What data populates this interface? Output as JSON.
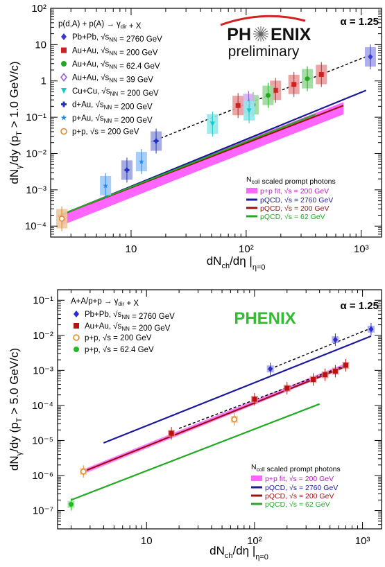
{
  "chart_data": [
    {
      "type": "scatter",
      "title": "",
      "xlabel": "dNch/dη |η=0",
      "ylabel": "dNγ/dy  (pT > 1.0 GeV/c)",
      "x_scale": "log",
      "y_scale": "log",
      "xlim": [
        2,
        1500
      ],
      "ylim": [
        5e-05,
        100
      ],
      "x_ticks": [
        "10",
        "10²",
        "10³"
      ],
      "y_ticks": [
        "10⁻⁴",
        "10⁻³",
        "10⁻²",
        "10⁻¹",
        "1",
        "10",
        "10²"
      ],
      "legend_header": "p(d,A) + p(A) → γdir + X",
      "legend_placement": "top-left",
      "alpha_label": "α = 1.25",
      "logo": [
        "PH",
        "ENIX"
      ],
      "logo_sub": "preliminary",
      "series": [
        {
          "name": "Pb+Pb, √sNN = 2760 GeV",
          "color": "#3a3ad0",
          "marker": "diamond",
          "x": [
            1200
          ],
          "y": [
            4.6
          ]
        },
        {
          "name": "Au+Au, √sNN = 200 GeV",
          "color": "#cc2222",
          "marker": "square",
          "x": [
            85,
            180,
            260,
            450
          ],
          "y": [
            0.21,
            0.55,
            0.8,
            1.5
          ]
        },
        {
          "name": "Au+Au, √sNN = 62.4 GeV",
          "color": "#22aa22",
          "marker": "circle",
          "x": [
            115,
            155,
            340
          ],
          "y": [
            0.22,
            0.4,
            1.15
          ]
        },
        {
          "name": "Au+Au, √sNN = 39 GeV",
          "color": "#9955dd",
          "marker": "diamond-open",
          "x": [
            105
          ],
          "y": [
            0.24
          ]
        },
        {
          "name": "Cu+Cu, √sNN = 200 GeV",
          "color": "#11cccc",
          "marker": "triangle-down",
          "x": [
            51,
            106
          ],
          "y": [
            0.065,
            0.15
          ]
        },
        {
          "name": "d+Au, √sNN = 200 GeV",
          "color": "#2233bb",
          "marker": "cross",
          "x": [
            9.2,
            16.5
          ],
          "y": [
            0.0035,
            0.022
          ]
        },
        {
          "name": "p+Au, √sNN = 200 GeV",
          "color": "#2288ee",
          "marker": "star",
          "x": [
            6,
            12.3
          ],
          "y": [
            0.0013,
            0.006
          ]
        },
        {
          "name": "p+p, √s = 200 GeV",
          "color": "#dd8822",
          "marker": "circle-open",
          "x": [
            2.5
          ],
          "y": [
            0.00016
          ]
        }
      ],
      "fit": {
        "x": [
          15,
          1200
        ],
        "y": [
          0.021,
          5.2
        ]
      },
      "band": {
        "x": [
          2.5,
          40,
          700
        ],
        "y_low": [
          0.000105,
          0.0035,
          0.12
        ],
        "y_high": [
          0.00022,
          0.0078,
          0.26
        ]
      },
      "curves": [
        {
          "name": "pQCD, √s = 2760 GeV",
          "color": "#1a1a9a",
          "x": [
            2.3,
            1100
          ],
          "y": [
            0.000185,
            0.55
          ]
        },
        {
          "name": "pQCD, √s = 200 GeV",
          "color": "#991111",
          "x": [
            2.3,
            700
          ],
          "y": [
            0.00019,
            0.21
          ]
        },
        {
          "name": "pQCD, √s = 62 GeV",
          "color": "#22aa22",
          "x": [
            2.3,
            400
          ],
          "y": [
            0.00019,
            0.12
          ]
        }
      ],
      "band_name": "p+p fit, √s = 200 GeV",
      "band_color": "#ff66ff",
      "bottom_legend_header": "Ncoll scaled prompt photons"
    },
    {
      "type": "scatter",
      "title": "",
      "xlabel": "dNch/dη |η=0",
      "ylabel": "dNγ/dy  (pT > 5.0 GeV/c)",
      "x_scale": "log",
      "y_scale": "log",
      "xlim": [
        1.5,
        1500
      ],
      "ylim": [
        3e-08,
        0.2
      ],
      "x_ticks": [
        "10",
        "10²",
        "10³"
      ],
      "y_ticks": [
        "10⁻⁷",
        "10⁻⁶",
        "10⁻⁵",
        "10⁻⁴",
        "10⁻³",
        "10⁻²",
        "10⁻¹"
      ],
      "legend_header": "A+A/p+p → γdir + X",
      "legend_placement": "top-left",
      "alpha_label": "α = 1.25",
      "logo": "PHENIX",
      "series": [
        {
          "name": "Pb+Pb, √sNN = 2760 GeV",
          "color": "#2a2ad0",
          "marker": "diamond",
          "x": [
            140,
            560,
            1200
          ],
          "y": [
            0.0011,
            0.0075,
            0.015
          ]
        },
        {
          "name": "Au+Au, √sNN = 200 GeV",
          "color": "#bb1111",
          "marker": "square",
          "x": [
            17,
            100,
            200,
            350,
            450,
            560,
            700
          ],
          "y": [
            1.6e-05,
            0.00015,
            0.00031,
            0.00055,
            0.00075,
            0.00095,
            0.0014
          ]
        },
        {
          "name": "p+p, √s = 200 GeV",
          "color": "#dd8822",
          "marker": "circle-open",
          "x": [
            2.6,
            65
          ],
          "y": [
            1.3e-06,
            4e-05
          ]
        },
        {
          "name": "p+p, √s = 62.4 GeV",
          "color": "#22bb22",
          "marker": "circle",
          "x": [
            2
          ],
          "y": [
            1.5e-07
          ]
        }
      ],
      "fits": [
        {
          "color": "#000000",
          "x": [
            140,
            1200
          ],
          "y": [
            0.0011,
            0.016
          ]
        },
        {
          "color": "#000000",
          "x": [
            20,
            700
          ],
          "y": [
            2.2e-05,
            0.0014
          ]
        }
      ],
      "band": {
        "x": [
          2.6,
          700
        ],
        "y_low": [
          1.1e-06,
          0.0012
        ],
        "y_high": [
          1.5e-06,
          0.0016
        ]
      },
      "curves": [
        {
          "name": "pQCD, √s = 2760 GeV",
          "color": "#1a1a9a",
          "x": [
            4,
            1200
          ],
          "y": [
            8.5e-06,
            0.0095
          ]
        },
        {
          "name": "pQCD, √s = 200 GeV",
          "color": "#991111",
          "x": [
            2.6,
            700
          ],
          "y": [
            1.3e-06,
            0.0013
          ]
        },
        {
          "name": "pQCD, √s = 62 GeV",
          "color": "#22aa22",
          "x": [
            2,
            400
          ],
          "y": [
            2e-07,
            0.00011
          ]
        }
      ],
      "band_name": "p+p fit, √s = 200 GeV",
      "band_color": "#ff66ff",
      "bottom_legend_header": "Ncoll scaled prompt photons"
    }
  ]
}
